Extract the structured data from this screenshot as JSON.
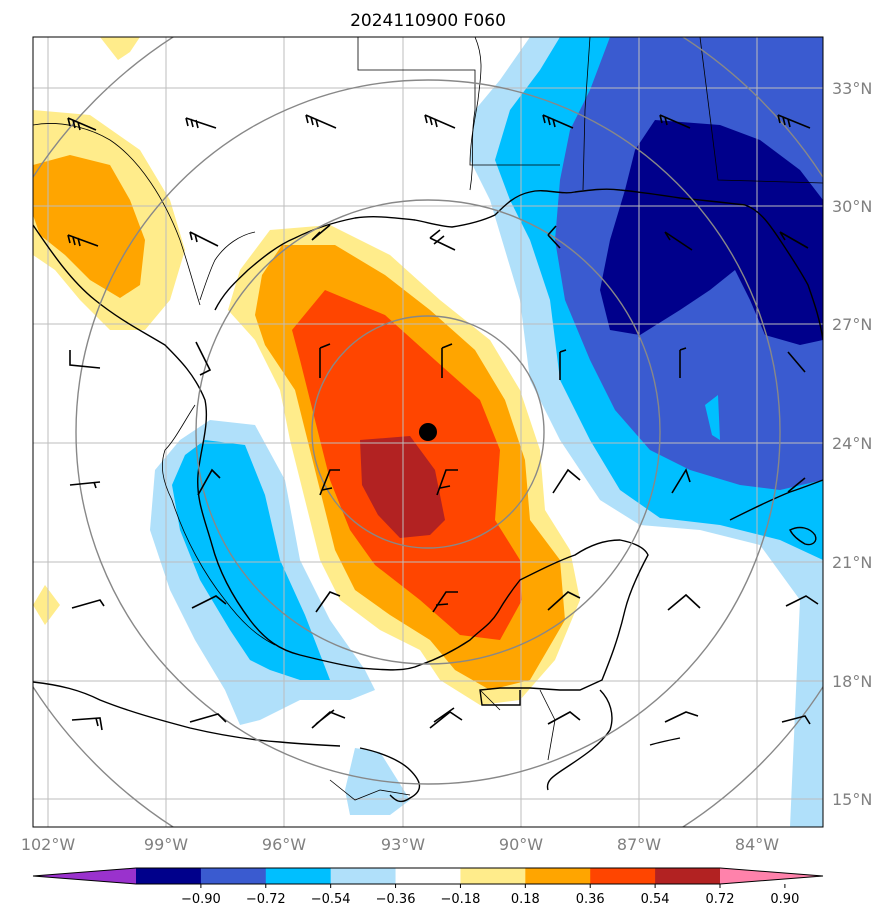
{
  "title": "2024110900 F060",
  "map": {
    "lat_labels": [
      "33°N",
      "30°N",
      "27°N",
      "24°N",
      "21°N",
      "18°N",
      "15°N"
    ],
    "lon_labels": [
      "102°W",
      "99°W",
      "96°W",
      "93°W",
      "90°W",
      "87°W",
      "84°W"
    ],
    "center_marker": "storm-center"
  },
  "colorbar": {
    "ticks": [
      "−0.90",
      "−0.72",
      "−0.54",
      "−0.36",
      "−0.18",
      "0.18",
      "0.36",
      "0.54",
      "0.72",
      "0.90"
    ],
    "colors": [
      "#9a32cd",
      "#00008b",
      "#3a5bd0",
      "#00bfff",
      "#b0e0fa",
      "#ffffff",
      "#ffec8b",
      "#ffa500",
      "#ff4500",
      "#b22222",
      "#ff82ab"
    ]
  }
}
